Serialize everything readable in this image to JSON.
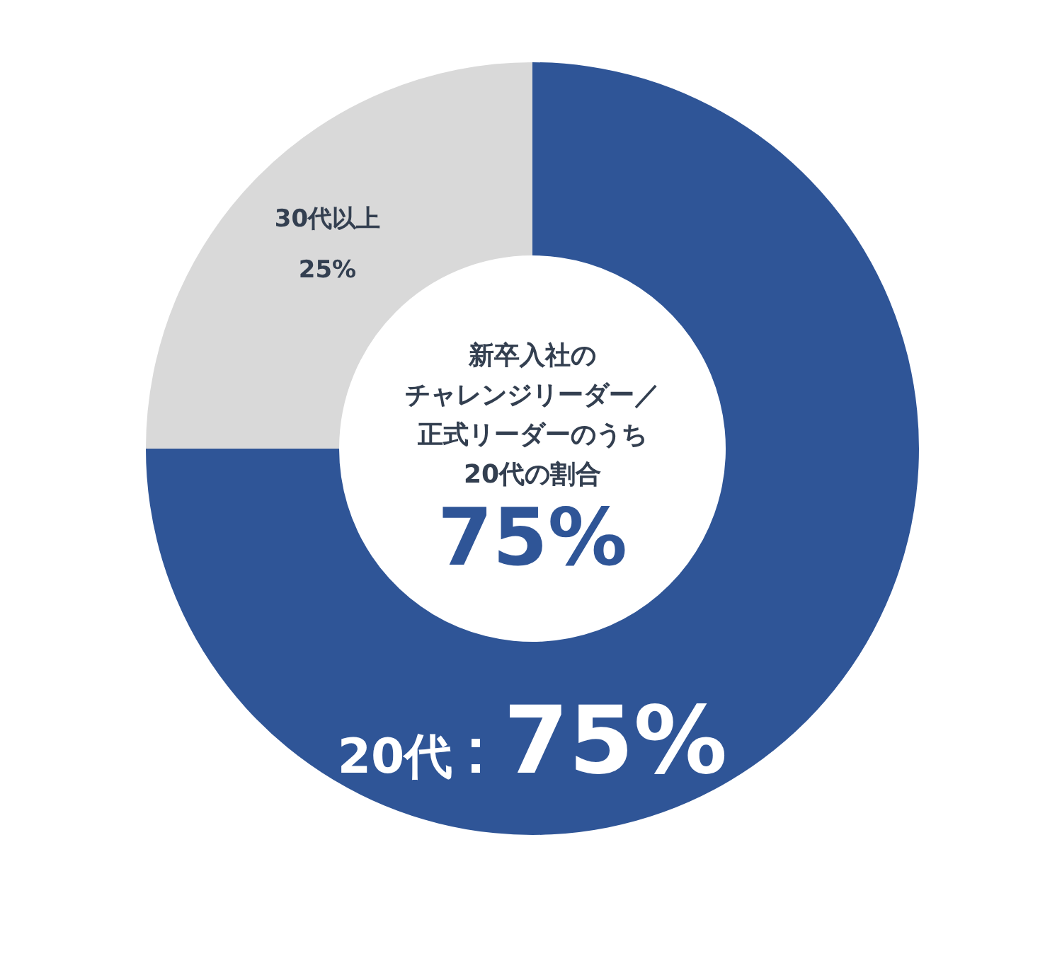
{
  "chart_data": {
    "type": "donut",
    "annotations": [
      "新卒入社の",
      "チャレンジリーダー／",
      "正式リーダーのうち",
      "20代の割合",
      "75%"
    ],
    "categories": [
      "20代",
      "30代以上"
    ],
    "values": [
      75,
      25
    ],
    "colors": [
      "#2f5597",
      "#d9d9d9"
    ],
    "value_labels": [
      "75%",
      "25%"
    ],
    "legend": false
  }
}
